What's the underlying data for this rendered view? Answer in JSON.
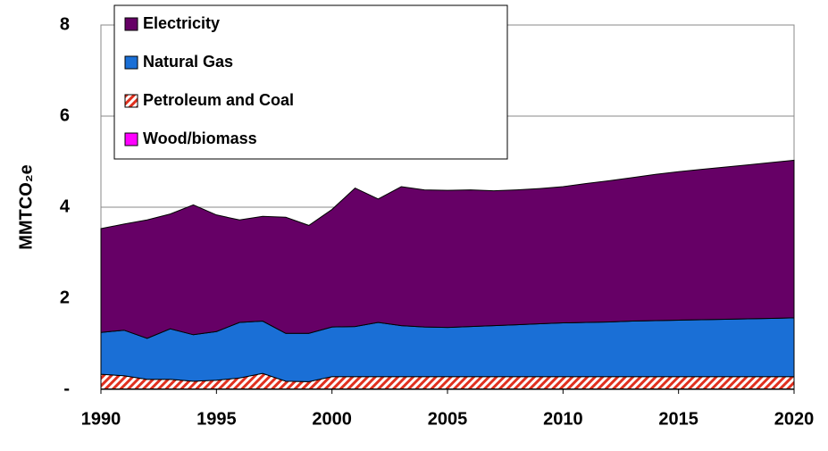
{
  "chart_data": {
    "type": "stacked-area",
    "ylabel": "MMTCO₂e",
    "x": [
      1990,
      1991,
      1992,
      1993,
      1994,
      1995,
      1996,
      1997,
      1998,
      1999,
      2000,
      2001,
      2002,
      2003,
      2004,
      2005,
      2006,
      2007,
      2008,
      2009,
      2010,
      2011,
      2012,
      2013,
      2014,
      2015,
      2016,
      2017,
      2018,
      2019,
      2020
    ],
    "xlim": [
      1990,
      2020
    ],
    "xticks": [
      1990,
      1995,
      2000,
      2005,
      2010,
      2015,
      2020
    ],
    "ylim": [
      0,
      8
    ],
    "yticks": [
      {
        "value": 0,
        "label": "-"
      },
      2,
      4,
      6,
      8
    ],
    "grid": true,
    "legend": "upper left",
    "series": [
      {
        "name": "Wood/biomass",
        "color": "#ff00ff",
        "values": [
          0.01,
          0.01,
          0.01,
          0.01,
          0.01,
          0.01,
          0.01,
          0.01,
          0.01,
          0.01,
          0.01,
          0.01,
          0.01,
          0.01,
          0.01,
          0.01,
          0.01,
          0.01,
          0.01,
          0.01,
          0.01,
          0.01,
          0.01,
          0.01,
          0.01,
          0.01,
          0.01,
          0.01,
          0.01,
          0.01,
          0.01
        ]
      },
      {
        "name": "Petroleum and Coal",
        "color": "#e0301e",
        "hatch": true,
        "values": [
          0.32,
          0.29,
          0.21,
          0.21,
          0.17,
          0.19,
          0.24,
          0.34,
          0.17,
          0.16,
          0.27,
          0.27,
          0.27,
          0.27,
          0.27,
          0.27,
          0.27,
          0.27,
          0.27,
          0.27,
          0.27,
          0.27,
          0.27,
          0.27,
          0.27,
          0.27,
          0.27,
          0.27,
          0.27,
          0.27,
          0.27
        ]
      },
      {
        "name": "Natural Gas",
        "color": "#1a6fd6",
        "values": [
          0.92,
          1.0,
          0.9,
          1.11,
          1.02,
          1.07,
          1.22,
          1.15,
          1.05,
          1.06,
          1.09,
          1.1,
          1.19,
          1.12,
          1.09,
          1.08,
          1.1,
          1.12,
          1.14,
          1.16,
          1.18,
          1.19,
          1.2,
          1.22,
          1.23,
          1.24,
          1.25,
          1.26,
          1.27,
          1.28,
          1.29
        ]
      },
      {
        "name": "Electricity",
        "color": "#660066",
        "values": [
          2.28,
          2.33,
          2.6,
          2.52,
          2.85,
          2.56,
          2.25,
          2.3,
          2.55,
          2.37,
          2.58,
          3.04,
          2.71,
          3.05,
          3.01,
          3.01,
          3.0,
          2.96,
          2.96,
          2.97,
          2.99,
          3.05,
          3.1,
          3.15,
          3.21,
          3.26,
          3.3,
          3.34,
          3.38,
          3.42,
          3.46
        ]
      }
    ]
  }
}
